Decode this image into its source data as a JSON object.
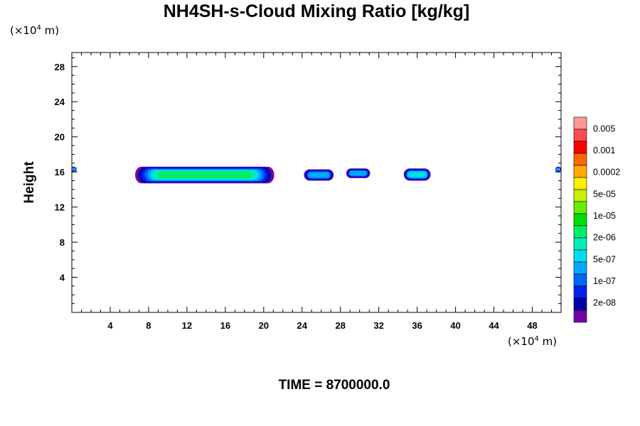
{
  "header": {
    "title": "NH4SH-s-Cloud Mixing Ratio [kg/kg]",
    "y_unit_prefix": "(×10",
    "y_unit_exp": "4",
    "y_unit_suffix": " m)",
    "x_unit_prefix": "(×10",
    "x_unit_exp": "4",
    "x_unit_suffix": " m)"
  },
  "footer": {
    "time_label": "TIME = 8700000.0"
  },
  "chart_data": {
    "type": "heatmap",
    "title": "NH4SH-s-Cloud Mixing Ratio [kg/kg]",
    "xlabel": "",
    "ylabel": "Height",
    "x_unit": "(×10^4 m)",
    "y_unit": "(×10^4 m)",
    "xlim": [
      0,
      51
    ],
    "ylim": [
      0,
      29.6
    ],
    "x_ticks": [
      4,
      8,
      12,
      16,
      20,
      24,
      28,
      32,
      36,
      40,
      44,
      48
    ],
    "y_ticks": [
      4,
      8,
      12,
      16,
      20,
      24,
      28
    ],
    "colorbar": {
      "labels": [
        "0.005",
        "0.001",
        "0.0002",
        "5e-05",
        "1e-05",
        "2e-06",
        "5e-07",
        "1e-07",
        "2e-08"
      ],
      "colors": [
        "#ff9999",
        "#ff4c4c",
        "#ff0000",
        "#ff6600",
        "#ffaa00",
        "#ffee00",
        "#c8f000",
        "#66ee00",
        "#00dd00",
        "#00ee66",
        "#00eebb",
        "#00ddee",
        "#00aaff",
        "#0066ff",
        "#0022ee",
        "#0000aa",
        "#7700aa"
      ]
    },
    "cloud_patches": [
      {
        "x": [
          -0.2,
          0.5
        ],
        "y": [
          16.0,
          16.6
        ],
        "max_level": "5e-07"
      },
      {
        "x": [
          6.6,
          21.1
        ],
        "y": [
          14.7,
          16.6
        ],
        "max_level": "5e-05"
      },
      {
        "x": [
          24.2,
          27.3
        ],
        "y": [
          15.0,
          16.3
        ],
        "max_level": "5e-07"
      },
      {
        "x": [
          28.6,
          31.1
        ],
        "y": [
          15.3,
          16.4
        ],
        "max_level": "5e-07"
      },
      {
        "x": [
          34.6,
          37.4
        ],
        "y": [
          15.0,
          16.4
        ],
        "max_level": "2e-06"
      },
      {
        "x": [
          50.4,
          51.0
        ],
        "y": [
          16.0,
          16.6
        ],
        "max_level": "5e-07"
      }
    ],
    "time": 8700000.0
  }
}
